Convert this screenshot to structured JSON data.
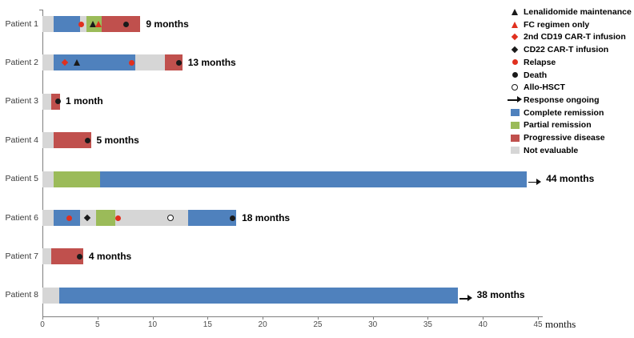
{
  "chart_data": {
    "type": "bar",
    "subtype": "swimmer-plot",
    "axis": {
      "xlabel": "months",
      "xlim": [
        0,
        45
      ],
      "xticks": [
        0,
        5,
        10,
        15,
        20,
        25,
        30,
        35,
        40,
        45
      ]
    },
    "colors": {
      "complete_remission": "#4f81bd",
      "partial_remission": "#9bbb59",
      "progressive_disease": "#c0504d",
      "not_evaluable": "#d6d6d6",
      "marker_red": "#e0301e",
      "marker_black": "#1a1a1a",
      "axis": "#7f7f7f"
    },
    "patients": [
      {
        "label": "Patient 1",
        "annotation": "9 months",
        "ongoing": false,
        "segments": [
          {
            "status": "not_evaluable",
            "start": 0,
            "end": 1.0
          },
          {
            "status": "complete_remission",
            "start": 1.0,
            "end": 3.4
          },
          {
            "status": "not_evaluable",
            "start": 3.4,
            "end": 4.0
          },
          {
            "status": "partial_remission",
            "start": 4.0,
            "end": 5.4
          },
          {
            "status": "progressive_disease",
            "start": 5.4,
            "end": 8.9
          }
        ],
        "markers": [
          {
            "type": "relapse",
            "symbol": "circle-red",
            "x": 3.5
          },
          {
            "type": "lenalidomide-maintenance",
            "symbol": "triangle-black",
            "x": 4.6
          },
          {
            "type": "fc-regimen-only",
            "symbol": "triangle-red",
            "x": 5.1
          },
          {
            "type": "death",
            "symbol": "circle-black",
            "x": 7.6
          }
        ]
      },
      {
        "label": "Patient 2",
        "annotation": "13 months",
        "ongoing": false,
        "segments": [
          {
            "status": "not_evaluable",
            "start": 0,
            "end": 1.0
          },
          {
            "status": "complete_remission",
            "start": 1.0,
            "end": 8.4
          },
          {
            "status": "not_evaluable",
            "start": 8.4,
            "end": 11.1
          },
          {
            "status": "progressive_disease",
            "start": 11.1,
            "end": 12.7
          }
        ],
        "markers": [
          {
            "type": "2nd-cd19-cart-infusion",
            "symbol": "diamond-red",
            "x": 2.0
          },
          {
            "type": "lenalidomide-maintenance",
            "symbol": "triangle-black",
            "x": 3.1
          },
          {
            "type": "relapse",
            "symbol": "circle-red",
            "x": 8.1
          },
          {
            "type": "death",
            "symbol": "circle-black",
            "x": 12.4
          }
        ]
      },
      {
        "label": "Patient 3",
        "annotation": "1 month",
        "ongoing": false,
        "segments": [
          {
            "status": "not_evaluable",
            "start": 0,
            "end": 0.8
          },
          {
            "status": "progressive_disease",
            "start": 0.8,
            "end": 1.6
          }
        ],
        "markers": [
          {
            "type": "death",
            "symbol": "circle-black",
            "x": 1.4
          }
        ]
      },
      {
        "label": "Patient 4",
        "annotation": "5 months",
        "ongoing": false,
        "segments": [
          {
            "status": "not_evaluable",
            "start": 0,
            "end": 1.0
          },
          {
            "status": "progressive_disease",
            "start": 1.0,
            "end": 4.4
          }
        ],
        "markers": [
          {
            "type": "death",
            "symbol": "circle-black",
            "x": 4.1
          }
        ]
      },
      {
        "label": "Patient 5",
        "annotation": "44 months",
        "ongoing": true,
        "segments": [
          {
            "status": "not_evaluable",
            "start": 0,
            "end": 1.0
          },
          {
            "status": "partial_remission",
            "start": 1.0,
            "end": 5.2
          },
          {
            "status": "complete_remission",
            "start": 5.2,
            "end": 44.0
          }
        ],
        "markers": []
      },
      {
        "label": "Patient 6",
        "annotation": "18 months",
        "ongoing": false,
        "segments": [
          {
            "status": "not_evaluable",
            "start": 0,
            "end": 1.0
          },
          {
            "status": "complete_remission",
            "start": 1.0,
            "end": 3.4
          },
          {
            "status": "not_evaluable",
            "start": 3.4,
            "end": 4.9
          },
          {
            "status": "partial_remission",
            "start": 4.9,
            "end": 6.6
          },
          {
            "status": "not_evaluable",
            "start": 6.6,
            "end": 13.2
          },
          {
            "status": "complete_remission",
            "start": 13.2,
            "end": 17.6
          }
        ],
        "markers": [
          {
            "type": "relapse",
            "symbol": "circle-red",
            "x": 2.4
          },
          {
            "type": "cd22-cart-infusion",
            "symbol": "diamond-black",
            "x": 4.1
          },
          {
            "type": "relapse",
            "symbol": "circle-red",
            "x": 6.9
          },
          {
            "type": "allo-hsct",
            "symbol": "circle-open",
            "x": 11.6
          },
          {
            "type": "death",
            "symbol": "circle-black",
            "x": 17.3
          }
        ]
      },
      {
        "label": "Patient 7",
        "annotation": "4 months",
        "ongoing": false,
        "segments": [
          {
            "status": "not_evaluable",
            "start": 0,
            "end": 0.8
          },
          {
            "status": "progressive_disease",
            "start": 0.8,
            "end": 3.7
          }
        ],
        "markers": [
          {
            "type": "death",
            "symbol": "circle-black",
            "x": 3.4
          }
        ]
      },
      {
        "label": "Patient 8",
        "annotation": "38 months",
        "ongoing": true,
        "segments": [
          {
            "status": "not_evaluable",
            "start": 0,
            "end": 1.5
          },
          {
            "status": "complete_remission",
            "start": 1.5,
            "end": 37.7
          }
        ],
        "markers": []
      }
    ],
    "legend": [
      {
        "label": "Lenalidomide maintenance",
        "symbol": "triangle-black"
      },
      {
        "label": "FC regimen only",
        "symbol": "triangle-red"
      },
      {
        "label": "2nd CD19 CAR-T infusion",
        "symbol": "diamond-red"
      },
      {
        "label": "CD22 CAR-T infusion",
        "symbol": "diamond-black"
      },
      {
        "label": "Relapse",
        "symbol": "circle-red"
      },
      {
        "label": "Death",
        "symbol": "circle-black"
      },
      {
        "label": "Allo-HSCT",
        "symbol": "circle-open"
      },
      {
        "label": "Response ongoing",
        "symbol": "arrow"
      },
      {
        "label": "Complete remission",
        "symbol": "bar-complete_remission"
      },
      {
        "label": "Partial remission",
        "symbol": "bar-partial_remission"
      },
      {
        "label": "Progressive disease",
        "symbol": "bar-progressive_disease"
      },
      {
        "label": "Not evaluable",
        "symbol": "bar-not_evaluable"
      }
    ]
  }
}
